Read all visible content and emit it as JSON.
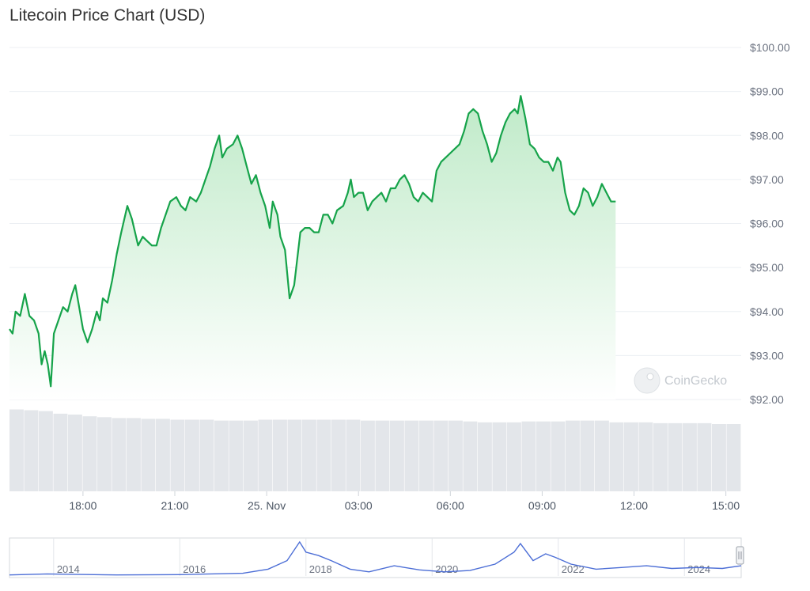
{
  "chart_data": {
    "type": "area",
    "title": "Litecoin Price Chart (USD)",
    "currency": "USD",
    "ylim": [
      92,
      100
    ],
    "y_ticks": [
      "$92.00",
      "$93.00",
      "$94.00",
      "$95.00",
      "$96.00",
      "$97.00",
      "$98.00",
      "$99.00",
      "$100.00"
    ],
    "y_tick_values": [
      92,
      93,
      94,
      95,
      96,
      97,
      98,
      99,
      100
    ],
    "x_ticks": [
      {
        "label": "18:00",
        "t": 2.0
      },
      {
        "label": "21:00",
        "t": 5.0
      },
      {
        "label": "25. Nov",
        "t": 8.0
      },
      {
        "label": "03:00",
        "t": 11.0
      },
      {
        "label": "06:00",
        "t": 14.0
      },
      {
        "label": "09:00",
        "t": 17.0
      },
      {
        "label": "12:00",
        "t": 20.0
      },
      {
        "label": "15:00",
        "t": 23.0
      }
    ],
    "x_range_hours": [
      -0.4,
      23.5
    ],
    "x_unit_note_hours_from": "16:00",
    "price_series": [
      {
        "t": -0.4,
        "v": 93.6
      },
      {
        "t": -0.3,
        "v": 93.5
      },
      {
        "t": -0.2,
        "v": 94.0
      },
      {
        "t": -0.05,
        "v": 93.9
      },
      {
        "t": 0.1,
        "v": 94.4
      },
      {
        "t": 0.25,
        "v": 93.9
      },
      {
        "t": 0.4,
        "v": 93.8
      },
      {
        "t": 0.55,
        "v": 93.5
      },
      {
        "t": 0.65,
        "v": 92.8
      },
      {
        "t": 0.75,
        "v": 93.1
      },
      {
        "t": 0.85,
        "v": 92.8
      },
      {
        "t": 0.95,
        "v": 92.3
      },
      {
        "t": 1.05,
        "v": 93.5
      },
      {
        "t": 1.2,
        "v": 93.8
      },
      {
        "t": 1.35,
        "v": 94.1
      },
      {
        "t": 1.5,
        "v": 94.0
      },
      {
        "t": 1.65,
        "v": 94.4
      },
      {
        "t": 1.75,
        "v": 94.6
      },
      {
        "t": 1.85,
        "v": 94.2
      },
      {
        "t": 2.0,
        "v": 93.6
      },
      {
        "t": 2.15,
        "v": 93.3
      },
      {
        "t": 2.3,
        "v": 93.6
      },
      {
        "t": 2.45,
        "v": 94.0
      },
      {
        "t": 2.55,
        "v": 93.8
      },
      {
        "t": 2.65,
        "v": 94.3
      },
      {
        "t": 2.8,
        "v": 94.2
      },
      {
        "t": 2.95,
        "v": 94.7
      },
      {
        "t": 3.1,
        "v": 95.3
      },
      {
        "t": 3.25,
        "v": 95.8
      },
      {
        "t": 3.45,
        "v": 96.4
      },
      {
        "t": 3.6,
        "v": 96.1
      },
      {
        "t": 3.8,
        "v": 95.5
      },
      {
        "t": 3.95,
        "v": 95.7
      },
      {
        "t": 4.1,
        "v": 95.6
      },
      {
        "t": 4.25,
        "v": 95.5
      },
      {
        "t": 4.4,
        "v": 95.5
      },
      {
        "t": 4.55,
        "v": 95.9
      },
      {
        "t": 4.7,
        "v": 96.2
      },
      {
        "t": 4.85,
        "v": 96.5
      },
      {
        "t": 5.05,
        "v": 96.6
      },
      {
        "t": 5.2,
        "v": 96.4
      },
      {
        "t": 5.35,
        "v": 96.3
      },
      {
        "t": 5.5,
        "v": 96.6
      },
      {
        "t": 5.7,
        "v": 96.5
      },
      {
        "t": 5.85,
        "v": 96.7
      },
      {
        "t": 6.0,
        "v": 97.0
      },
      {
        "t": 6.15,
        "v": 97.3
      },
      {
        "t": 6.3,
        "v": 97.7
      },
      {
        "t": 6.45,
        "v": 98.0
      },
      {
        "t": 6.55,
        "v": 97.5
      },
      {
        "t": 6.7,
        "v": 97.7
      },
      {
        "t": 6.9,
        "v": 97.8
      },
      {
        "t": 7.05,
        "v": 98.0
      },
      {
        "t": 7.2,
        "v": 97.7
      },
      {
        "t": 7.35,
        "v": 97.3
      },
      {
        "t": 7.5,
        "v": 96.9
      },
      {
        "t": 7.65,
        "v": 97.1
      },
      {
        "t": 7.8,
        "v": 96.7
      },
      {
        "t": 7.95,
        "v": 96.4
      },
      {
        "t": 8.1,
        "v": 95.9
      },
      {
        "t": 8.2,
        "v": 96.5
      },
      {
        "t": 8.35,
        "v": 96.2
      },
      {
        "t": 8.45,
        "v": 95.7
      },
      {
        "t": 8.6,
        "v": 95.4
      },
      {
        "t": 8.75,
        "v": 94.3
      },
      {
        "t": 8.9,
        "v": 94.6
      },
      {
        "t": 9.0,
        "v": 95.2
      },
      {
        "t": 9.1,
        "v": 95.8
      },
      {
        "t": 9.25,
        "v": 95.9
      },
      {
        "t": 9.4,
        "v": 95.9
      },
      {
        "t": 9.55,
        "v": 95.8
      },
      {
        "t": 9.7,
        "v": 95.8
      },
      {
        "t": 9.85,
        "v": 96.2
      },
      {
        "t": 10.0,
        "v": 96.2
      },
      {
        "t": 10.15,
        "v": 96.0
      },
      {
        "t": 10.3,
        "v": 96.3
      },
      {
        "t": 10.5,
        "v": 96.4
      },
      {
        "t": 10.65,
        "v": 96.7
      },
      {
        "t": 10.75,
        "v": 97.0
      },
      {
        "t": 10.85,
        "v": 96.6
      },
      {
        "t": 11.0,
        "v": 96.7
      },
      {
        "t": 11.15,
        "v": 96.7
      },
      {
        "t": 11.3,
        "v": 96.3
      },
      {
        "t": 11.45,
        "v": 96.5
      },
      {
        "t": 11.6,
        "v": 96.6
      },
      {
        "t": 11.75,
        "v": 96.7
      },
      {
        "t": 11.9,
        "v": 96.5
      },
      {
        "t": 12.05,
        "v": 96.8
      },
      {
        "t": 12.2,
        "v": 96.8
      },
      {
        "t": 12.35,
        "v": 97.0
      },
      {
        "t": 12.5,
        "v": 97.1
      },
      {
        "t": 12.65,
        "v": 96.9
      },
      {
        "t": 12.8,
        "v": 96.6
      },
      {
        "t": 12.95,
        "v": 96.5
      },
      {
        "t": 13.1,
        "v": 96.7
      },
      {
        "t": 13.25,
        "v": 96.6
      },
      {
        "t": 13.4,
        "v": 96.5
      },
      {
        "t": 13.55,
        "v": 97.2
      },
      {
        "t": 13.7,
        "v": 97.4
      },
      {
        "t": 13.85,
        "v": 97.5
      },
      {
        "t": 14.0,
        "v": 97.6
      },
      {
        "t": 14.15,
        "v": 97.7
      },
      {
        "t": 14.3,
        "v": 97.8
      },
      {
        "t": 14.45,
        "v": 98.1
      },
      {
        "t": 14.6,
        "v": 98.5
      },
      {
        "t": 14.75,
        "v": 98.6
      },
      {
        "t": 14.9,
        "v": 98.5
      },
      {
        "t": 15.05,
        "v": 98.1
      },
      {
        "t": 15.2,
        "v": 97.8
      },
      {
        "t": 15.35,
        "v": 97.4
      },
      {
        "t": 15.5,
        "v": 97.6
      },
      {
        "t": 15.65,
        "v": 98.0
      },
      {
        "t": 15.8,
        "v": 98.3
      },
      {
        "t": 15.95,
        "v": 98.5
      },
      {
        "t": 16.1,
        "v": 98.6
      },
      {
        "t": 16.2,
        "v": 98.5
      },
      {
        "t": 16.3,
        "v": 98.9
      },
      {
        "t": 16.45,
        "v": 98.4
      },
      {
        "t": 16.6,
        "v": 97.8
      },
      {
        "t": 16.75,
        "v": 97.7
      },
      {
        "t": 16.9,
        "v": 97.5
      },
      {
        "t": 17.05,
        "v": 97.4
      },
      {
        "t": 17.2,
        "v": 97.4
      },
      {
        "t": 17.35,
        "v": 97.2
      },
      {
        "t": 17.5,
        "v": 97.5
      },
      {
        "t": 17.6,
        "v": 97.4
      },
      {
        "t": 17.75,
        "v": 96.7
      },
      {
        "t": 17.9,
        "v": 96.3
      },
      {
        "t": 18.05,
        "v": 96.2
      },
      {
        "t": 18.2,
        "v": 96.4
      },
      {
        "t": 18.35,
        "v": 96.8
      },
      {
        "t": 18.5,
        "v": 96.7
      },
      {
        "t": 18.65,
        "v": 96.4
      },
      {
        "t": 18.8,
        "v": 96.6
      },
      {
        "t": 18.95,
        "v": 96.9
      },
      {
        "t": 19.1,
        "v": 96.7
      },
      {
        "t": 19.25,
        "v": 96.5
      },
      {
        "t": 19.4,
        "v": 96.5
      }
    ],
    "volume_series": [
      95,
      94,
      93,
      90,
      89,
      87,
      86,
      85,
      85,
      84,
      84,
      83,
      83,
      83,
      82,
      82,
      82,
      83,
      83,
      83,
      83,
      83,
      83,
      83,
      82,
      82,
      82,
      82,
      82,
      82,
      82,
      81,
      80,
      80,
      80,
      81,
      81,
      81,
      82,
      82,
      82,
      80,
      80,
      80,
      79,
      79,
      79,
      79,
      78,
      78
    ],
    "overview": {
      "type": "line",
      "x_labels": [
        "2014",
        "2016",
        "2018",
        "2020",
        "2022",
        "2024"
      ],
      "x_start": 2013.3,
      "x_end": 2024.9,
      "values": [
        {
          "x": 2013.3,
          "v": 3
        },
        {
          "x": 2013.9,
          "v": 6
        },
        {
          "x": 2014.3,
          "v": 5
        },
        {
          "x": 2015.0,
          "v": 3
        },
        {
          "x": 2016.0,
          "v": 4
        },
        {
          "x": 2017.0,
          "v": 8
        },
        {
          "x": 2017.4,
          "v": 20
        },
        {
          "x": 2017.7,
          "v": 45
        },
        {
          "x": 2017.9,
          "v": 100
        },
        {
          "x": 2018.0,
          "v": 70
        },
        {
          "x": 2018.2,
          "v": 60
        },
        {
          "x": 2018.4,
          "v": 45
        },
        {
          "x": 2018.7,
          "v": 20
        },
        {
          "x": 2019.0,
          "v": 12
        },
        {
          "x": 2019.4,
          "v": 30
        },
        {
          "x": 2019.8,
          "v": 18
        },
        {
          "x": 2020.2,
          "v": 12
        },
        {
          "x": 2020.6,
          "v": 16
        },
        {
          "x": 2021.0,
          "v": 35
        },
        {
          "x": 2021.3,
          "v": 70
        },
        {
          "x": 2021.4,
          "v": 95
        },
        {
          "x": 2021.6,
          "v": 45
        },
        {
          "x": 2021.8,
          "v": 65
        },
        {
          "x": 2021.95,
          "v": 55
        },
        {
          "x": 2022.2,
          "v": 35
        },
        {
          "x": 2022.6,
          "v": 20
        },
        {
          "x": 2023.0,
          "v": 25
        },
        {
          "x": 2023.4,
          "v": 30
        },
        {
          "x": 2023.8,
          "v": 22
        },
        {
          "x": 2024.2,
          "v": 25
        },
        {
          "x": 2024.6,
          "v": 22
        },
        {
          "x": 2024.9,
          "v": 30
        }
      ]
    }
  },
  "watermark": "CoinGecko",
  "colors": {
    "line": "#16a34a",
    "area_top": "#bfeac8",
    "grid": "#eceff3",
    "volume": "#e3e6ea",
    "overview_line": "#4c6ed6"
  }
}
